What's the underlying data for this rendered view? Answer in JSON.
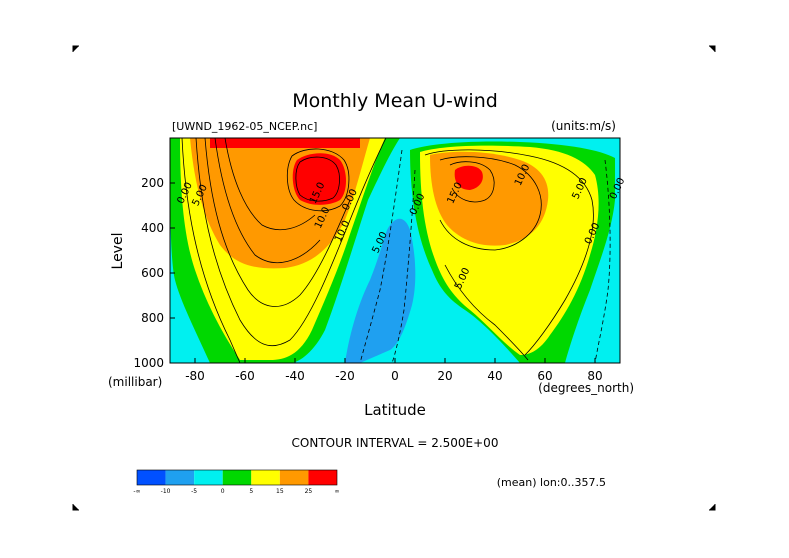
{
  "chart_data": {
    "type": "contour",
    "title": "Monthly Mean U-wind",
    "dataset_label": "[UWND_1962-05_NCEP.nc]",
    "units_label": "(units:m/s)",
    "xlabel": "Latitude",
    "xunits": "(degrees_north)",
    "ylabel": "Level",
    "yunits": "(millibar)",
    "x_ticks": [
      "-80",
      "-60",
      "-40",
      "-20",
      "0",
      "20",
      "40",
      "60",
      "80"
    ],
    "x_tick_values": [
      -80,
      -60,
      -40,
      -20,
      0,
      20,
      40,
      60,
      80
    ],
    "y_ticks": [
      "200",
      "400",
      "600",
      "800",
      "1000"
    ],
    "y_tick_values": [
      200,
      400,
      600,
      800,
      1000
    ],
    "xlim": [
      -90,
      90
    ],
    "ylim": [
      1000,
      0
    ],
    "contour_interval": "CONTOUR INTERVAL = 2.500E+00",
    "footer_note": "(mean) lon:0..357.5",
    "contour_labels": [
      {
        "text": "0.00",
        "lat": -83,
        "lev": 250
      },
      {
        "text": "5.00",
        "lat": -77,
        "lev": 260
      },
      {
        "text": "15.0",
        "lat": -30,
        "lev": 250
      },
      {
        "text": "10.0",
        "lat": -28,
        "lev": 360
      },
      {
        "text": "10.0",
        "lat": -20,
        "lev": 420
      },
      {
        "text": "0.00",
        "lat": -17,
        "lev": 280
      },
      {
        "text": "5.00",
        "lat": -5,
        "lev": 470
      },
      {
        "text": "0.00",
        "lat": 10,
        "lev": 300
      },
      {
        "text": "15.0",
        "lat": 25,
        "lev": 250
      },
      {
        "text": "5.00",
        "lat": 28,
        "lev": 630
      },
      {
        "text": "10.0",
        "lat": 52,
        "lev": 170
      },
      {
        "text": "5.00",
        "lat": 75,
        "lev": 230
      },
      {
        "text": "0.00",
        "lat": 80,
        "lev": 430
      },
      {
        "text": "0.00",
        "lat": 90,
        "lev": 230
      }
    ],
    "colorbar": {
      "colors": [
        "#0050ff",
        "#1fa0f0",
        "#00f0f0",
        "#00d800",
        "#ffff00",
        "#ff9900",
        "#ff0000"
      ],
      "labels": [
        "-∞",
        "-10",
        "-5",
        "0",
        "5",
        "15",
        "25",
        "∞"
      ]
    }
  }
}
